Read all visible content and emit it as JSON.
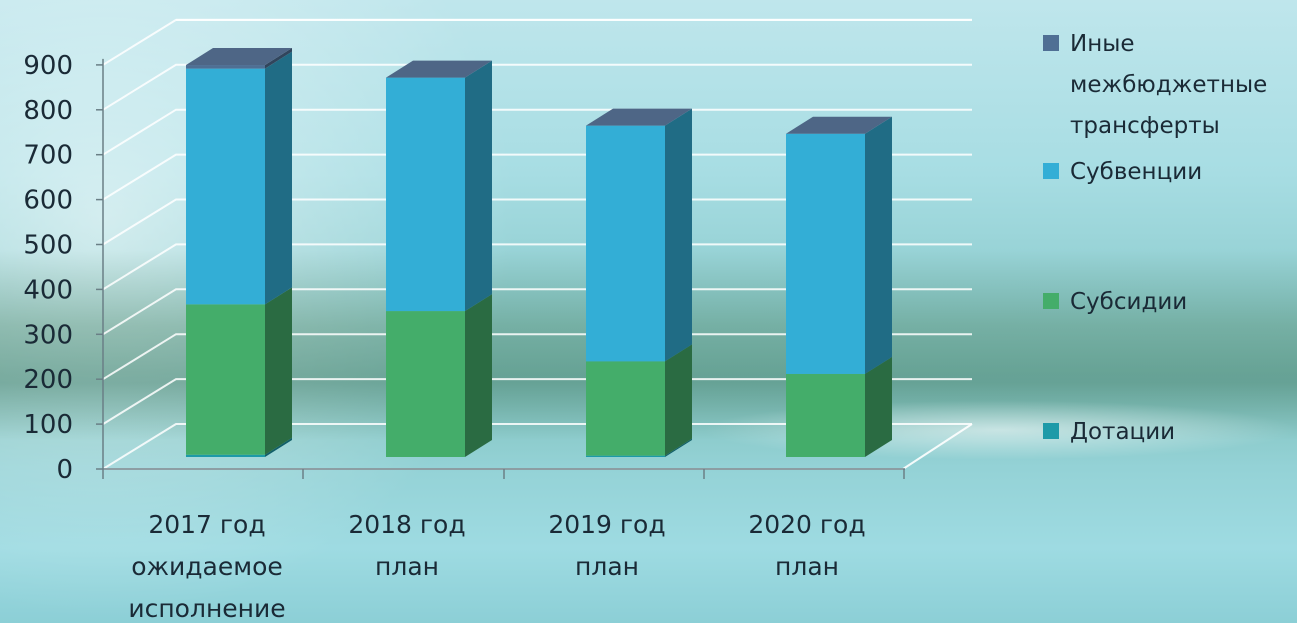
{
  "chart_data": {
    "type": "bar",
    "stacked": true,
    "three_d": true,
    "categories": [
      [
        "2017 год",
        "ожидаемое",
        "исполнение"
      ],
      [
        "2018 год",
        "план"
      ],
      [
        "2019 год",
        "план"
      ],
      [
        "2020 год",
        "план"
      ]
    ],
    "series": [
      {
        "name": "Дотации",
        "color": "#1d9aa8",
        "values": [
          5,
          0,
          3,
          0
        ]
      },
      {
        "name": "Субсидии",
        "color": "#44ad6a",
        "values": [
          335,
          325,
          210,
          185
        ]
      },
      {
        "name": "Субвенции",
        "color": "#33aed6",
        "values": [
          525,
          520,
          525,
          535
        ]
      },
      {
        "name": "Иные межбюджетные трансферты",
        "name_lines": [
          "Иные",
          "межбюджетные",
          "трансферты"
        ],
        "color": "#4f6f94",
        "values": [
          8,
          0,
          0,
          0
        ]
      }
    ],
    "y_ticks": [
      0,
      100,
      200,
      300,
      400,
      500,
      600,
      700,
      800,
      900
    ],
    "ylim": [
      0,
      900
    ],
    "grid": true,
    "legend_position": "right"
  }
}
